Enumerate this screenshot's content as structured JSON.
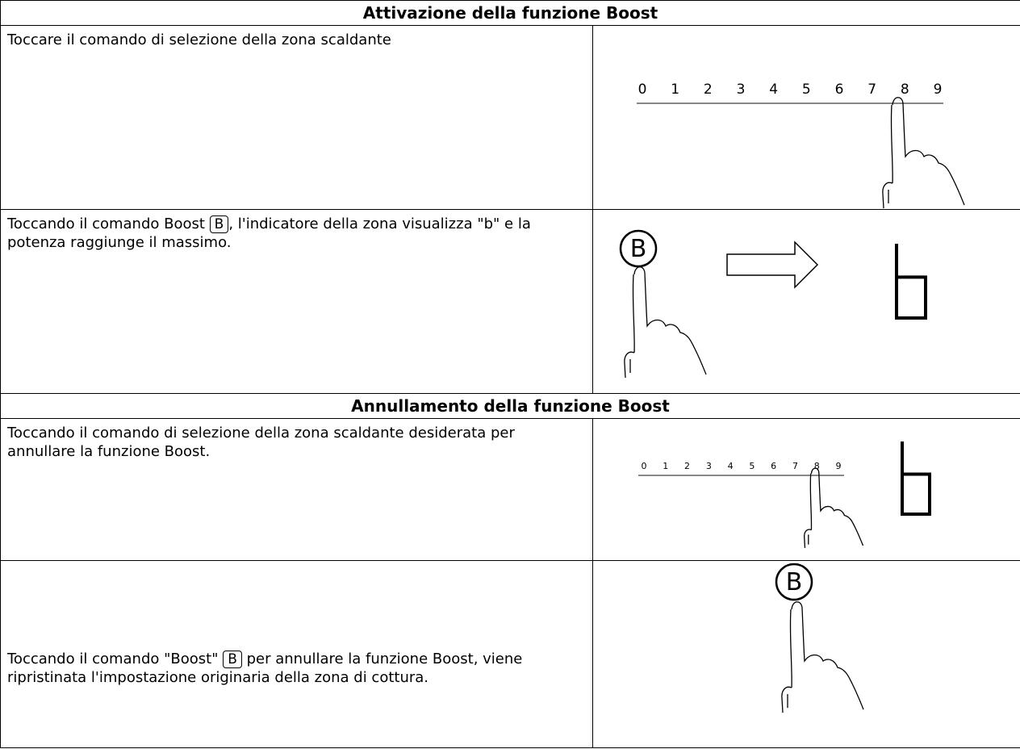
{
  "sections": [
    {
      "title": "Attivazione della funzione Boost",
      "rows": [
        {
          "text": "Toccare il comando di selezione della zona scaldante",
          "digits": [
            "0",
            "1",
            "2",
            "3",
            "4",
            "5",
            "6",
            "7",
            "8",
            "9"
          ]
        },
        {
          "text_before": "Toccando il comando Boost ",
          "key": "B",
          "text_after": ", l'indicatore della zona visualizza \"b\" e la potenza raggiunge il massimo.",
          "button": "B"
        }
      ]
    },
    {
      "title": "Annullamento della funzione Boost",
      "rows": [
        {
          "text": "Toccando il comando di selezione della zona scaldante desiderata per annullare la funzione Boost.",
          "digits": [
            "0",
            "1",
            "2",
            "3",
            "4",
            "5",
            "6",
            "7",
            "8",
            "9"
          ]
        },
        {
          "text_before": "Toccando il comando \"Boost\" ",
          "key": "B",
          "text_after": " per annullare la funzione Boost, viene ripristinata l'impostazione originaria della zona di cottura.",
          "button": "B"
        }
      ]
    }
  ]
}
